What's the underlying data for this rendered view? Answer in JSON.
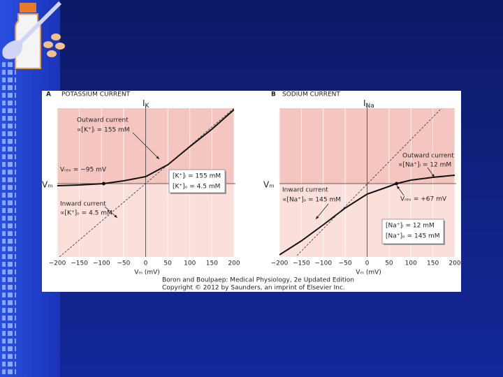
{
  "chart_data": [
    {
      "type": "line",
      "panel": "A",
      "title": "POTASSIUM CURRENT",
      "ylabel": "I",
      "ylabel_sub": "K",
      "vlabel": "Vₘ",
      "xlabel": "Vₘ (mV)",
      "xlim": [
        -200,
        200
      ],
      "ylim": [
        -105,
        108
      ],
      "grid": true,
      "xticks": [
        {
          "value": -200,
          "label": "−200"
        },
        {
          "value": -150,
          "label": "−150"
        },
        {
          "value": -100,
          "label": "−100"
        },
        {
          "value": -50,
          "label": "−50"
        },
        0,
        50,
        100,
        150,
        200
      ],
      "series": [
        {
          "color": "#111111",
          "x": [
            -200,
            -150,
            -95,
            -50,
            0,
            50,
            100,
            150,
            200
          ],
          "values": [
            -3,
            -2,
            0,
            4,
            10,
            27,
            53,
            78,
            106
          ]
        },
        {
          "color": "#333333",
          "dash": true,
          "x": [
            -195,
            200
          ],
          "values": [
            -105,
            108
          ]
        }
      ],
      "vrev": -95,
      "annotations": [
        "Outward current",
        "∝[K⁺]ᵢ = 155 mM",
        "Vᵣₑᵥ = −95 mV",
        "Inward current",
        "∝[K⁺]ₒ = 4.5 mM"
      ],
      "box": [
        "[K⁺]ᵢ = 155 mM",
        "[K⁺]ₒ = 4.5 mM"
      ]
    },
    {
      "type": "line",
      "panel": "B",
      "title": "SODIUM CURRENT",
      "ylabel": "I",
      "ylabel_sub": "Na",
      "vlabel": "Vₘ",
      "xlabel": "Vₘ (mV)",
      "xlim": [
        -200,
        200
      ],
      "ylim": [
        -105,
        108
      ],
      "grid": true,
      "xticks": [
        {
          "value": -200,
          "label": "−200"
        },
        {
          "value": -150,
          "label": "−150"
        },
        {
          "value": -100,
          "label": "−100"
        },
        {
          "value": -50,
          "label": "−50"
        },
        0,
        50,
        100,
        150,
        200
      ],
      "series": [
        {
          "color": "#111111",
          "x": [
            -200,
            -150,
            -100,
            -50,
            0,
            50,
            67,
            100,
            150,
            200
          ],
          "values": [
            -102,
            -82,
            -59,
            -35,
            -15,
            -4,
            0,
            5,
            9,
            12
          ]
        },
        {
          "color": "#333333",
          "dash": true,
          "x": [
            -160,
            170
          ],
          "values": [
            -103,
            108
          ]
        }
      ],
      "vrev": 67,
      "annotations": [
        "Outward current",
        "∝[Na⁺]ᵢ = 12 mM",
        "Inward current",
        "∝[Na⁺]ₒ = 145 mM",
        "Vᵣₑᵥ = +67 mV"
      ],
      "box": [
        "[Na⁺]ᵢ = 12 mM",
        "[Na⁺]ₒ = 145 mM"
      ]
    }
  ],
  "caption": [
    "Boron and Boulpaep: Medical Physiology, 2e Updated Edition",
    "Copyright © 2012 by Saunders, an imprint of Elsevier Inc."
  ]
}
